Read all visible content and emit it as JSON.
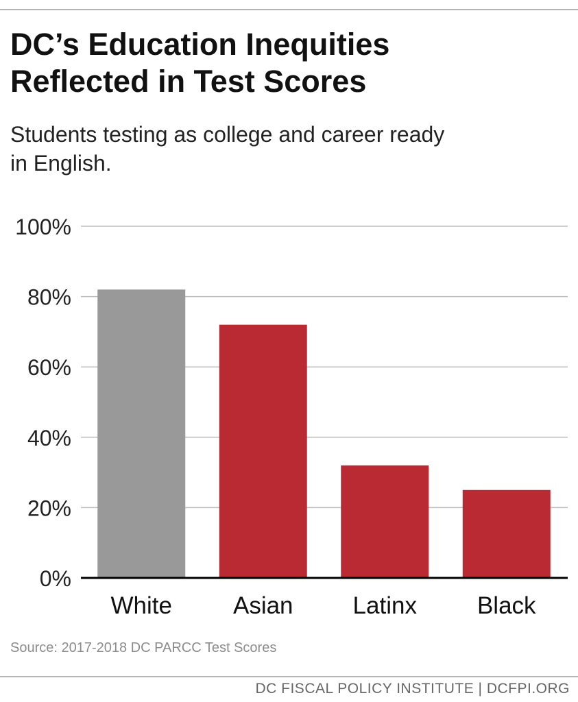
{
  "header": {
    "title_line1": "DC’s Education Inequities",
    "title_line2": "Reflected in Test Scores",
    "subtitle_line1": "Students testing as college and career ready",
    "subtitle_line2": "in English."
  },
  "chart_data": {
    "type": "bar",
    "title": "DC’s Education Inequities Reflected in Test Scores",
    "subtitle": "Students testing as college and career ready in English.",
    "categories": [
      "White",
      "Asian",
      "Latinx",
      "Black"
    ],
    "values": [
      82,
      72,
      32,
      25
    ],
    "unit": "%",
    "ylim": [
      0,
      100
    ],
    "yticks": [
      0,
      20,
      40,
      60,
      80,
      100
    ],
    "ytick_labels": [
      "0%",
      "20%",
      "40%",
      "60%",
      "80%",
      "100%"
    ],
    "grid": true,
    "legend": "none",
    "bar_colors": [
      "#999999",
      "#b92a33",
      "#b92a33",
      "#b92a33"
    ]
  },
  "footer": {
    "source": "Source: 2017-2018 DC PARCC Test Scores",
    "credit": "DC FISCAL POLICY INSTITUTE | DCFPI.ORG"
  },
  "colors": {
    "gridline": "#bdbdbd",
    "baseline": "#000000",
    "accent": "#b92a33",
    "neutral": "#999999"
  }
}
